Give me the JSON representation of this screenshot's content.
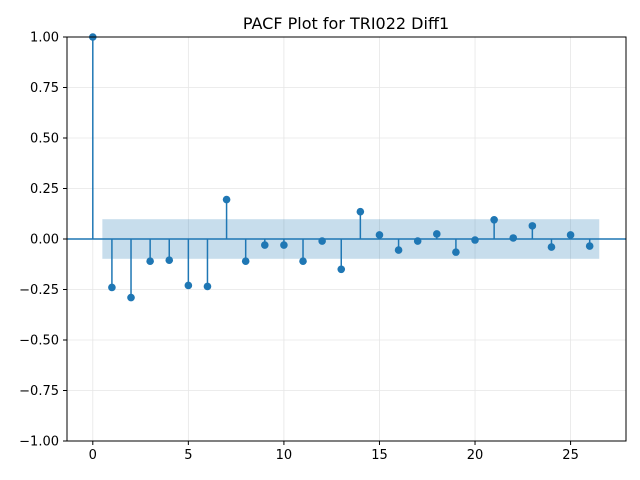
{
  "chart_data": {
    "type": "stem",
    "title": "PACF Plot for TRI022 Diff1",
    "xlabel": "",
    "ylabel": "",
    "xlim": [
      -1.35,
      27.9
    ],
    "ylim": [
      -1.0,
      1.0
    ],
    "x_ticks": [
      0,
      5,
      10,
      15,
      20,
      25
    ],
    "y_ticks": [
      1.0,
      0.75,
      0.5,
      0.25,
      0.0,
      -0.25,
      -0.5,
      -0.75,
      -1.0
    ],
    "x_tick_labels": [
      "0",
      "5",
      "10",
      "15",
      "20",
      "25"
    ],
    "y_tick_labels": [
      "1.00",
      "0.75",
      "0.50",
      "0.25",
      "0.00",
      "−0.25",
      "−0.50",
      "−0.75",
      "−1.00"
    ],
    "grid": true,
    "confidence_band": {
      "x_range": [
        0.5,
        26.5
      ],
      "lower": -0.098,
      "upper": 0.098
    },
    "lags": [
      0,
      1,
      2,
      3,
      4,
      5,
      6,
      7,
      8,
      9,
      10,
      11,
      12,
      13,
      14,
      15,
      16,
      17,
      18,
      19,
      20,
      21,
      22,
      23,
      24,
      25,
      26
    ],
    "values": [
      1.0,
      -0.24,
      -0.29,
      -0.11,
      -0.105,
      -0.23,
      -0.235,
      0.195,
      -0.11,
      -0.03,
      -0.03,
      -0.11,
      -0.01,
      -0.15,
      0.135,
      0.02,
      -0.055,
      -0.01,
      0.025,
      -0.065,
      -0.005,
      0.095,
      0.005,
      0.065,
      -0.04,
      0.02,
      -0.035
    ],
    "colors": {
      "stem": "#1f77b4",
      "band": "#1f77b4",
      "grid": "#e6e6e6",
      "axis": "#000000"
    }
  }
}
